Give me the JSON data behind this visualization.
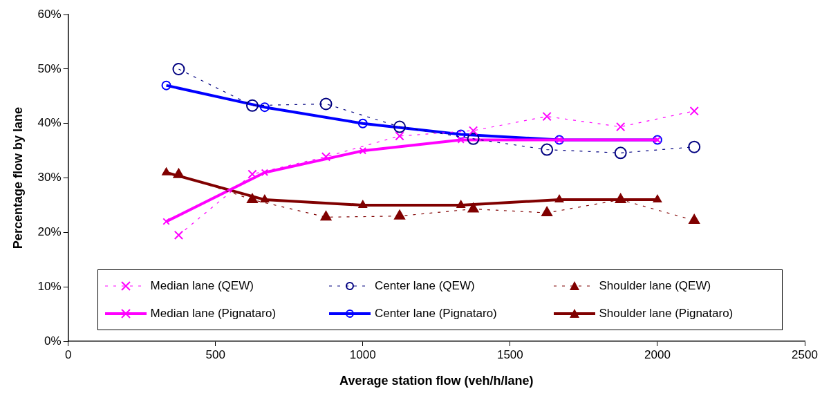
{
  "chart_data": {
    "type": "line",
    "xlabel": "Average station flow (veh/h/lane)",
    "ylabel": "Percentage flow by lane",
    "xlim": [
      0,
      2500
    ],
    "xticks": [
      0,
      500,
      1000,
      1500,
      2000,
      2500
    ],
    "ylim": [
      0,
      60
    ],
    "yticks": [
      {
        "value": 0,
        "label": "0%"
      },
      {
        "value": 10,
        "label": "10%"
      },
      {
        "value": 20,
        "label": "20%"
      },
      {
        "value": 30,
        "label": "30%"
      },
      {
        "value": 40,
        "label": "40%"
      },
      {
        "value": 50,
        "label": "50%"
      },
      {
        "value": 60,
        "label": "60%"
      }
    ],
    "grid": false,
    "legend": "bottom",
    "series": [
      {
        "name": "Median lane (QEW)",
        "color": "#ff00ff",
        "marker": "cross",
        "line_style": "dashed",
        "x": [
          375,
          625,
          875,
          1125,
          1375,
          1625,
          1875,
          2125
        ],
        "values": [
          19.5,
          30.7,
          33.9,
          37.7,
          38.7,
          41.3,
          39.4,
          42.3
        ]
      },
      {
        "name": "Center lane (QEW)",
        "color": "#000080",
        "marker": "circle",
        "line_style": "dashed",
        "x": [
          375,
          625,
          875,
          1125,
          1375,
          1625,
          1875,
          2125
        ],
        "values": [
          50.0,
          43.3,
          43.6,
          39.4,
          37.2,
          35.2,
          34.6,
          35.7
        ]
      },
      {
        "name": "Shoulder lane (QEW)",
        "color": "#800000",
        "marker": "triangle",
        "line_style": "dashed",
        "x": [
          375,
          625,
          875,
          1125,
          1375,
          1625,
          1875,
          2125
        ],
        "values": [
          30.6,
          26.0,
          22.8,
          23.0,
          24.3,
          23.6,
          26.0,
          22.2
        ]
      },
      {
        "name": "Median lane (Pignataro)",
        "color": "#ff00ff",
        "marker": "cross",
        "line_style": "solid",
        "x": [
          333,
          667,
          1000,
          1333,
          1667,
          2000
        ],
        "values": [
          22.0,
          31.0,
          35.0,
          37.0,
          37.0,
          37.0
        ]
      },
      {
        "name": "Center lane (Pignataro)",
        "color": "#0000ff",
        "marker": "circle",
        "line_style": "solid",
        "x": [
          333,
          667,
          1000,
          1333,
          1667,
          2000
        ],
        "values": [
          47.0,
          43.0,
          40.0,
          38.0,
          37.0,
          37.0
        ]
      },
      {
        "name": "Shoulder lane (Pignataro)",
        "color": "#800000",
        "marker": "triangle",
        "line_style": "solid",
        "x": [
          333,
          667,
          1000,
          1333,
          1667,
          2000
        ],
        "values": [
          31.0,
          26.0,
          25.0,
          25.0,
          26.0,
          26.0
        ]
      }
    ]
  }
}
